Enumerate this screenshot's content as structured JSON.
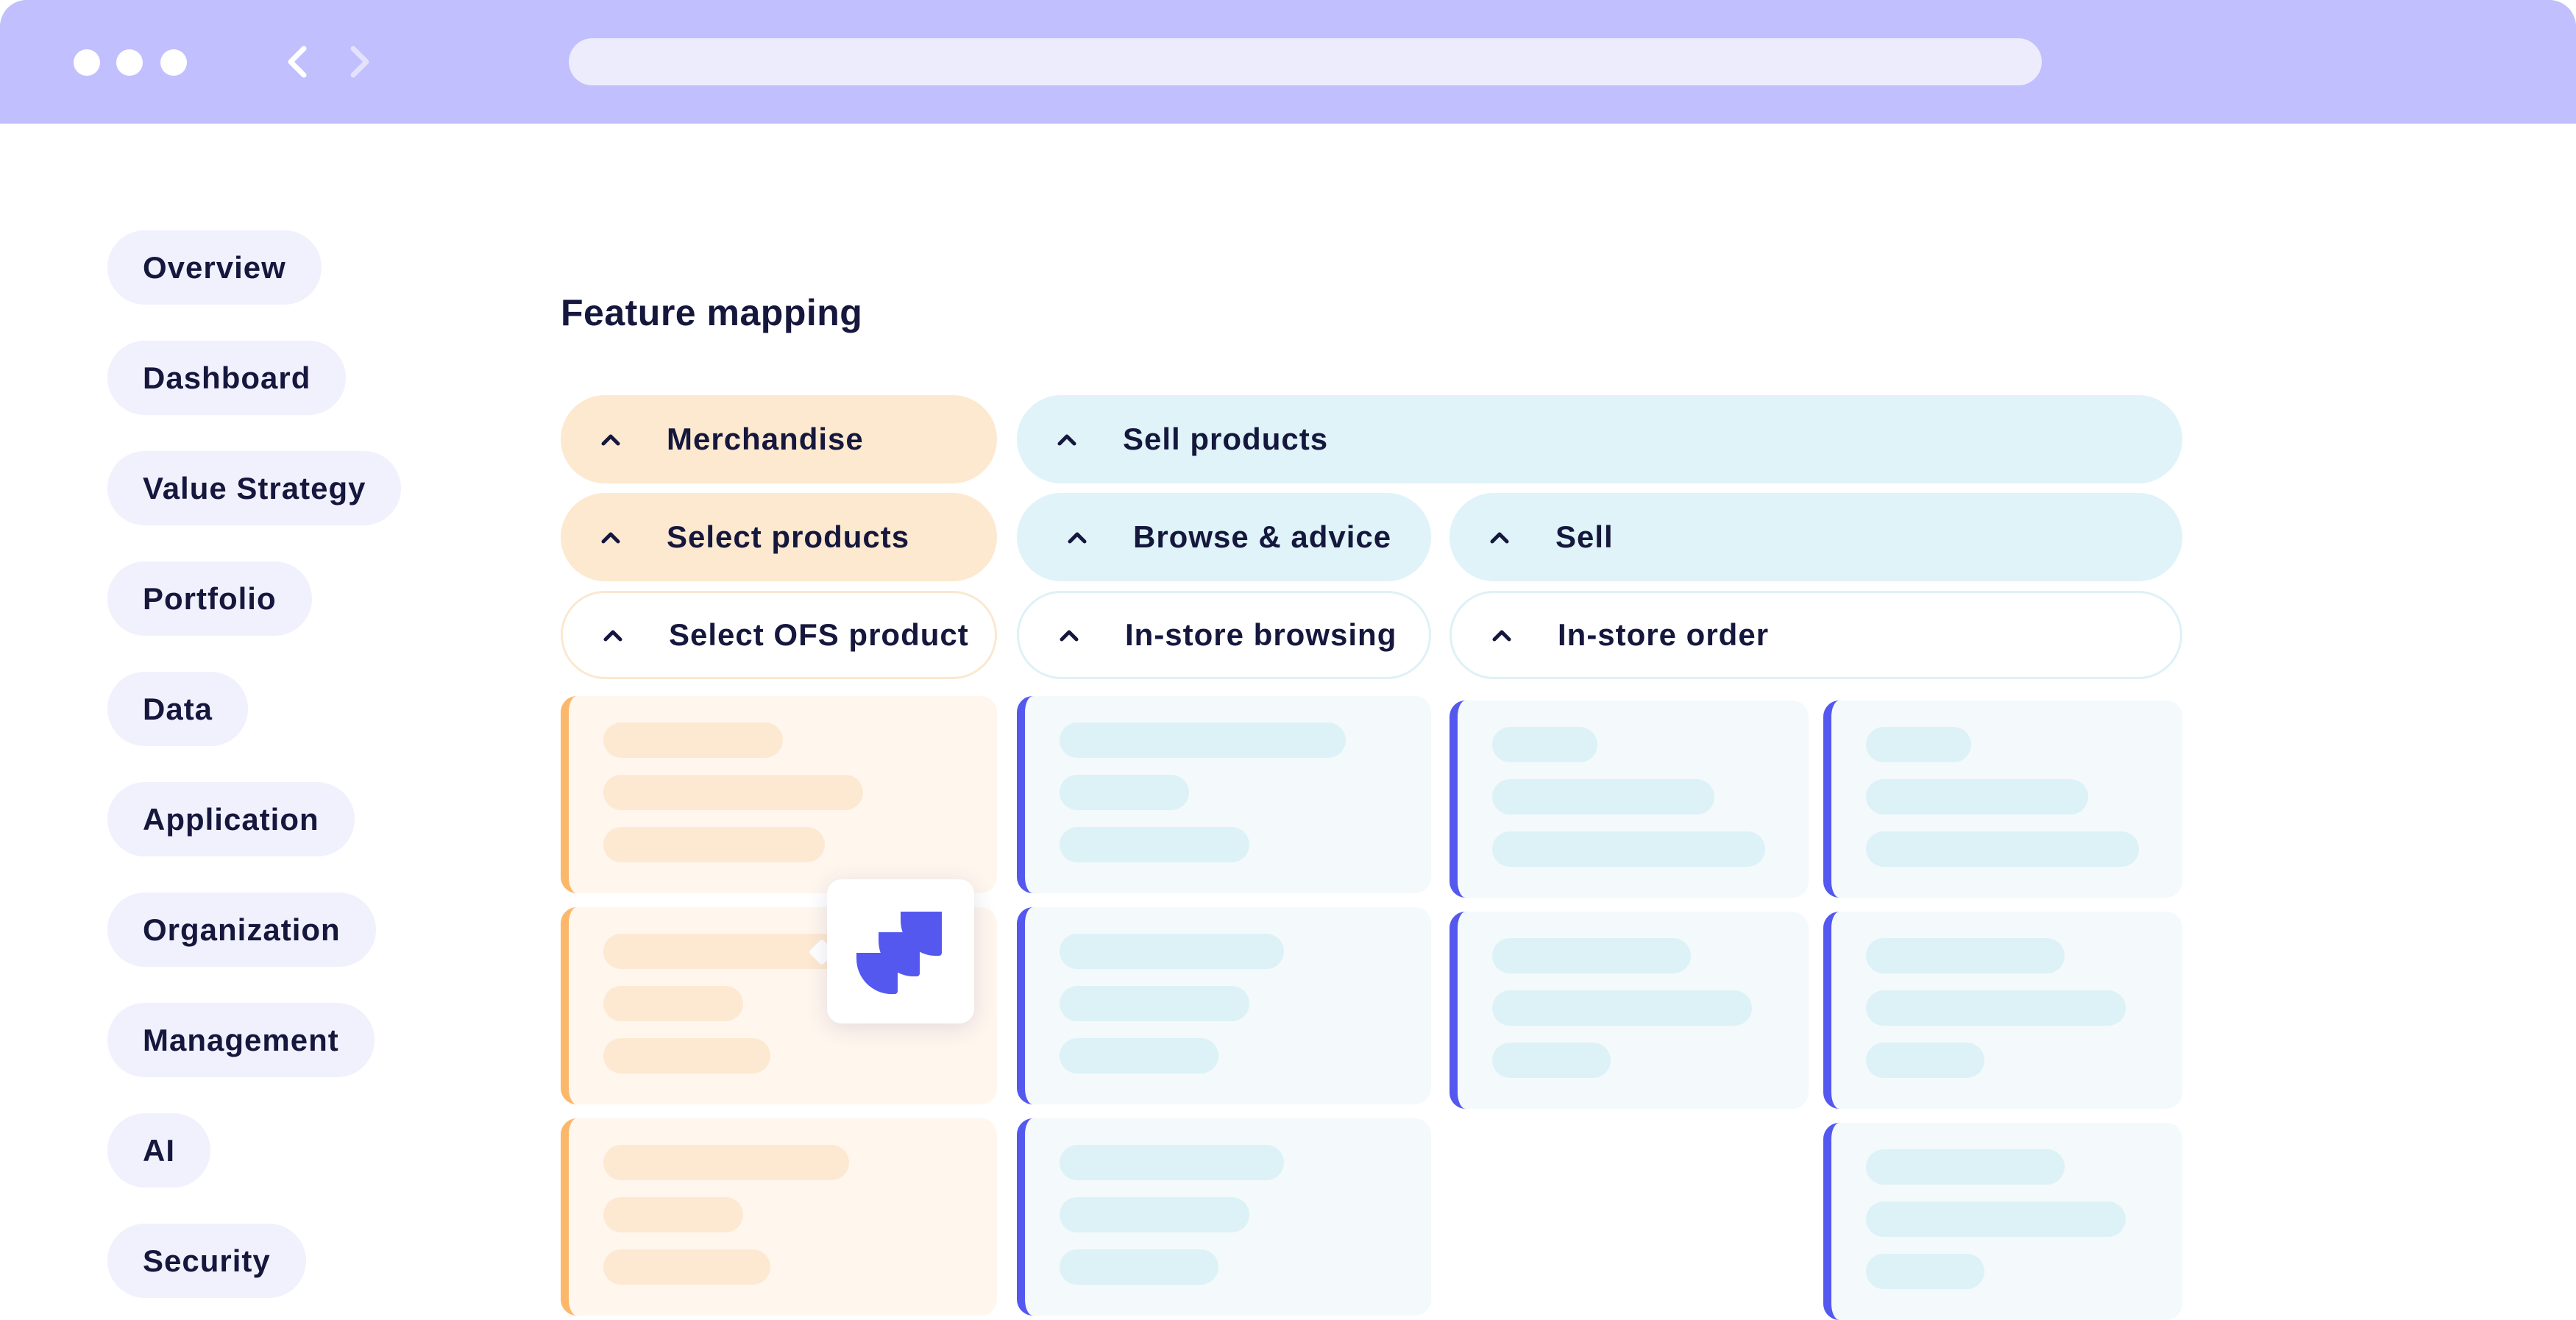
{
  "browser": {
    "window_dots": [
      "dot",
      "dot",
      "dot"
    ],
    "back_icon": "chevron-left-icon",
    "forward_icon": "chevron-right-icon",
    "address": ""
  },
  "sidebar": {
    "items": [
      {
        "label": "Overview"
      },
      {
        "label": "Dashboard"
      },
      {
        "label": "Value Strategy"
      },
      {
        "label": "Portfolio"
      },
      {
        "label": "Data"
      },
      {
        "label": "Application"
      },
      {
        "label": "Organization"
      },
      {
        "label": "Management"
      },
      {
        "label": "AI"
      },
      {
        "label": "Security"
      }
    ]
  },
  "main": {
    "title": "Feature mapping",
    "level1": [
      {
        "label": "Merchandise",
        "icon": "chevron-up-icon"
      },
      {
        "label": "Sell products",
        "icon": "chevron-up-icon"
      }
    ],
    "level2": [
      {
        "label": "Select products",
        "icon": "chevron-up-icon"
      },
      {
        "label": "Browse & advice",
        "icon": "chevron-up-icon"
      },
      {
        "label": "Sell",
        "icon": "chevron-up-icon"
      }
    ],
    "level3": [
      {
        "label": "Select OFS product",
        "icon": "chevron-up-icon"
      },
      {
        "label": "In-store browsing",
        "icon": "chevron-up-icon"
      },
      {
        "label": "In-store order",
        "icon": "chevron-up-icon"
      }
    ],
    "integration_popup": {
      "icon": "jira-logo-icon"
    }
  },
  "colors": {
    "titlebar": "#c1bffd",
    "orange_accent": "#fbb86b",
    "blue_accent": "#5458ef",
    "orange_bg": "#fde9cf",
    "cyan_bg": "#dff3f8",
    "text": "#15173d"
  }
}
